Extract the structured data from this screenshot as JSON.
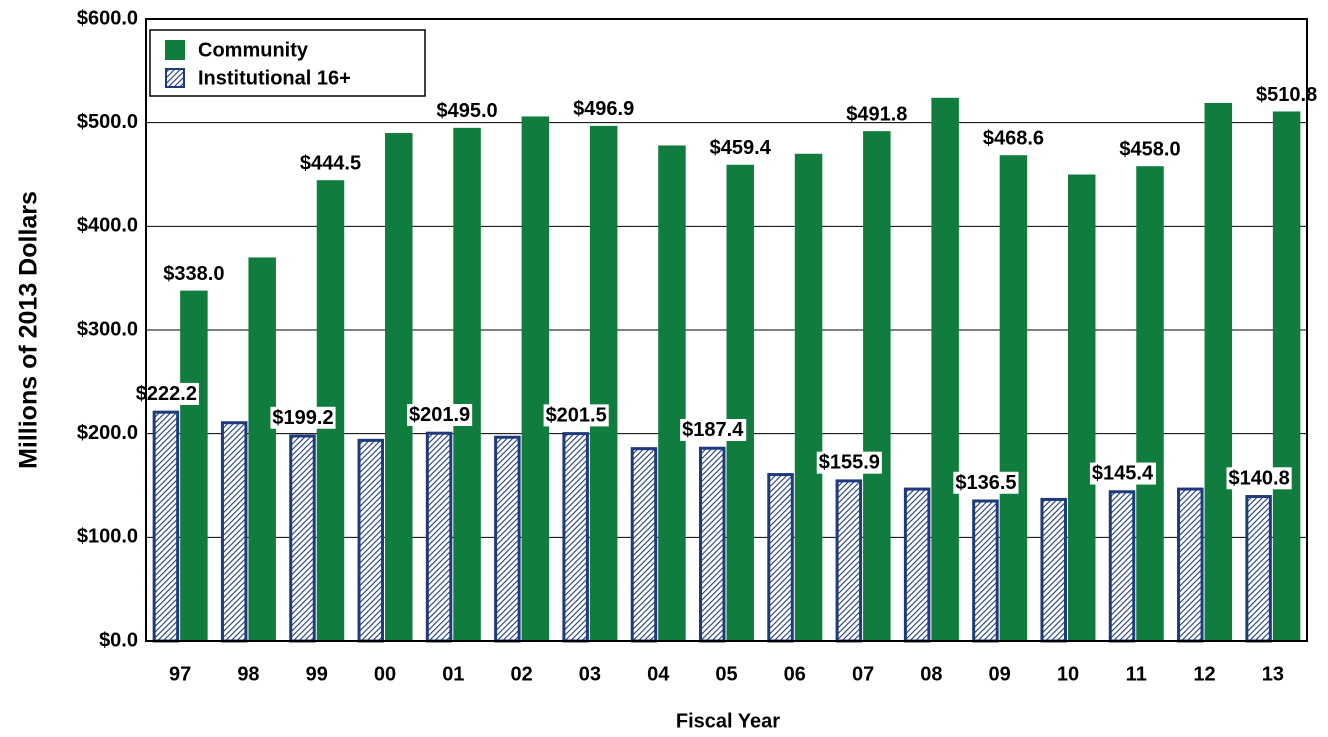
{
  "chart_data": {
    "type": "bar",
    "x_label": "Fiscal Year",
    "y_label": "Millions of 2013 Dollars",
    "categories": [
      "97",
      "98",
      "99",
      "00",
      "01",
      "02",
      "03",
      "04",
      "05",
      "06",
      "07",
      "08",
      "09",
      "10",
      "11",
      "12",
      "13"
    ],
    "series": [
      {
        "name": "Institutional 16+",
        "color": "#1f3a7a",
        "pattern": "hatch",
        "values": [
          222.2,
          212,
          199.2,
          195,
          201.9,
          198,
          201.5,
          187,
          187.4,
          162,
          155.9,
          148,
          136.5,
          138,
          145.4,
          148,
          140.8
        ],
        "value_labels": [
          "$222.2",
          null,
          "$199.2",
          null,
          "$201.9",
          null,
          "$201.5",
          null,
          "$187.4",
          null,
          "$155.9",
          null,
          "$136.5",
          null,
          "$145.4",
          null,
          "$140.8"
        ]
      },
      {
        "name": "Community",
        "color": "#107c3e",
        "values": [
          338.0,
          370,
          444.5,
          490,
          495.0,
          506,
          496.9,
          478,
          459.4,
          470,
          491.8,
          524,
          468.6,
          450,
          458.0,
          519,
          510.8
        ],
        "value_labels": [
          "$338.0",
          null,
          "$444.5",
          null,
          "$495.0",
          null,
          "$496.9",
          null,
          "$459.4",
          null,
          "$491.8",
          null,
          "$468.6",
          null,
          "$458.0",
          null,
          "$510.8"
        ]
      }
    ],
    "ylim": [
      0,
      600
    ],
    "yticks": [
      {
        "value": 0,
        "label": "$0.0"
      },
      {
        "value": 100,
        "label": "$100.0"
      },
      {
        "value": 200,
        "label": "$200.0"
      },
      {
        "value": 300,
        "label": "$300.0"
      },
      {
        "value": 400,
        "label": "$400.0"
      },
      {
        "value": 500,
        "label": "$500.0"
      },
      {
        "value": 600,
        "label": "$600.0"
      }
    ],
    "grid": true,
    "legend": "upper left"
  }
}
